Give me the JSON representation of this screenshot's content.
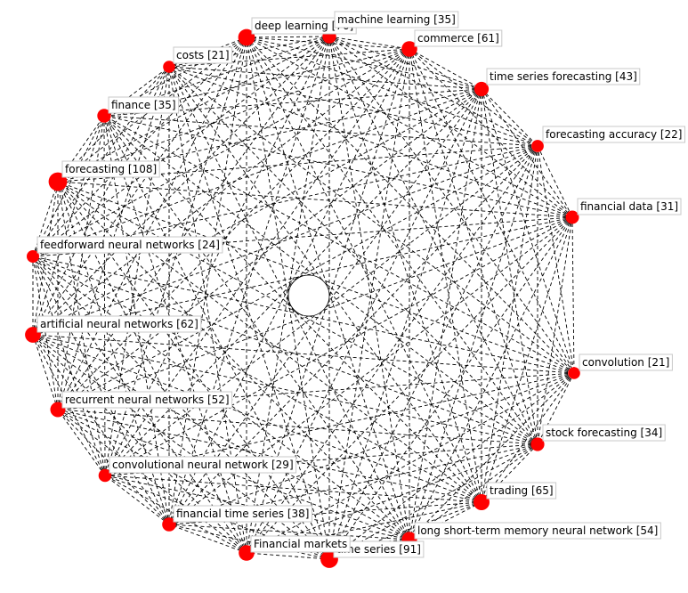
{
  "diagram": {
    "type": "network",
    "layout": "circular",
    "edges": "all-pairs",
    "node_color": "#ff0000",
    "edge_color": "#000000",
    "edge_style": "dashed",
    "nodes": [
      {
        "id": "deep-learning",
        "label": "deep learning [76]",
        "weight": 76
      },
      {
        "id": "machine-learning",
        "label": "machine learning [35]",
        "weight": 35
      },
      {
        "id": "commerce",
        "label": "commerce [61]",
        "weight": 61
      },
      {
        "id": "time-series-forecasting",
        "label": "time series forecasting [43]",
        "weight": 43
      },
      {
        "id": "forecasting-accuracy",
        "label": "forecasting accuracy [22]",
        "weight": 22
      },
      {
        "id": "financial-data",
        "label": "financial data [31]",
        "weight": 31
      },
      {
        "id": "convolution",
        "label": "convolution [21]",
        "weight": 21
      },
      {
        "id": "stock-forecasting",
        "label": "stock forecasting [34]",
        "weight": 34
      },
      {
        "id": "trading",
        "label": "trading [65]",
        "weight": 65
      },
      {
        "id": "lstm",
        "label": "long short-term memory neural network [54]",
        "weight": 54
      },
      {
        "id": "time-series",
        "label": "time series [91]",
        "weight": 91
      },
      {
        "id": "financial-markets",
        "label": "Financial markets",
        "weight": 60
      },
      {
        "id": "financial-time-series",
        "label": "financial time series [38]",
        "weight": 38
      },
      {
        "id": "cnn",
        "label": "convolutional neural network [29]",
        "weight": 29
      },
      {
        "id": "rnn",
        "label": "recurrent neural networks [52]",
        "weight": 52
      },
      {
        "id": "ann",
        "label": "artificial neural networks [62]",
        "weight": 62
      },
      {
        "id": "ffnn",
        "label": "feedforward neural networks [24]",
        "weight": 24
      },
      {
        "id": "forecasting",
        "label": "forecasting [108]",
        "weight": 108
      },
      {
        "id": "finance",
        "label": "finance [35]",
        "weight": 35
      },
      {
        "id": "costs",
        "label": "costs [21]",
        "weight": 21
      }
    ]
  }
}
